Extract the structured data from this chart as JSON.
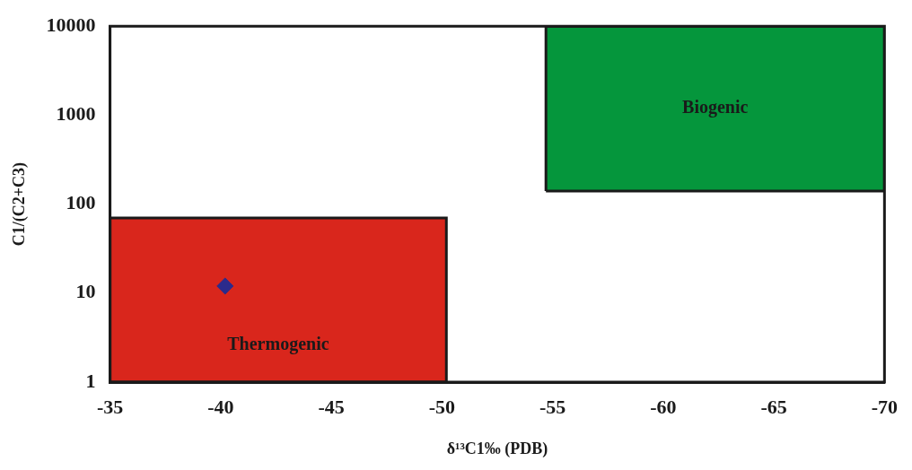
{
  "chart_data": {
    "type": "scatter",
    "xlabel": "δ¹³C1‰ (PDB)",
    "ylabel": "C1/(C2+C3)",
    "xlim": [
      -35,
      -70
    ],
    "xticks": [
      -35,
      -40,
      -45,
      -50,
      -55,
      -60,
      -65,
      -70
    ],
    "ylim": [
      1,
      10000
    ],
    "yticks": [
      1,
      10,
      100,
      1000,
      10000
    ],
    "log": "y",
    "grid": false,
    "legend": false,
    "series": [
      {
        "name": "Thermogenic",
        "type": "area",
        "color": "#d9261c",
        "x": [
          -35,
          -35,
          -50.2,
          -50.2,
          -35
        ],
        "values": [
          1,
          70,
          70,
          1,
          1
        ]
      },
      {
        "name": "Biogenic",
        "type": "area",
        "color": "#05963c",
        "x": [
          -54.7,
          -54.7,
          -70,
          -70,
          -54.7
        ],
        "values": [
          140,
          10000,
          10000,
          140,
          140
        ]
      },
      {
        "type": "scatter",
        "color": "#2b2b8c",
        "marker": "diamond",
        "x": [
          -40.2
        ],
        "values": [
          12
        ]
      }
    ]
  }
}
